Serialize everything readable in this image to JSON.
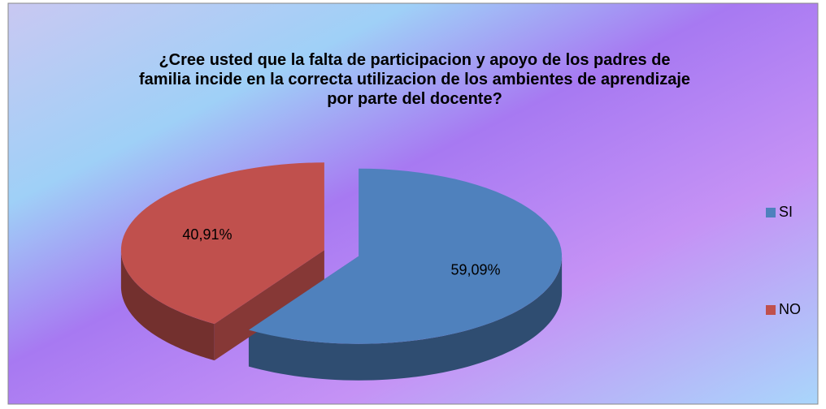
{
  "chart_data": {
    "type": "pie",
    "title": "¿Cree usted que la falta de participacion y apoyo de los padres de familia incide en la correcta utilizacion de los ambientes de aprendizaje por parte del docente?",
    "categories": [
      "SI",
      "NO"
    ],
    "values": [
      59.09,
      40.91
    ],
    "value_labels": [
      "59,09%",
      "40,91%"
    ],
    "colors": [
      "#4f81bd",
      "#c0504d"
    ],
    "legend": "right"
  }
}
